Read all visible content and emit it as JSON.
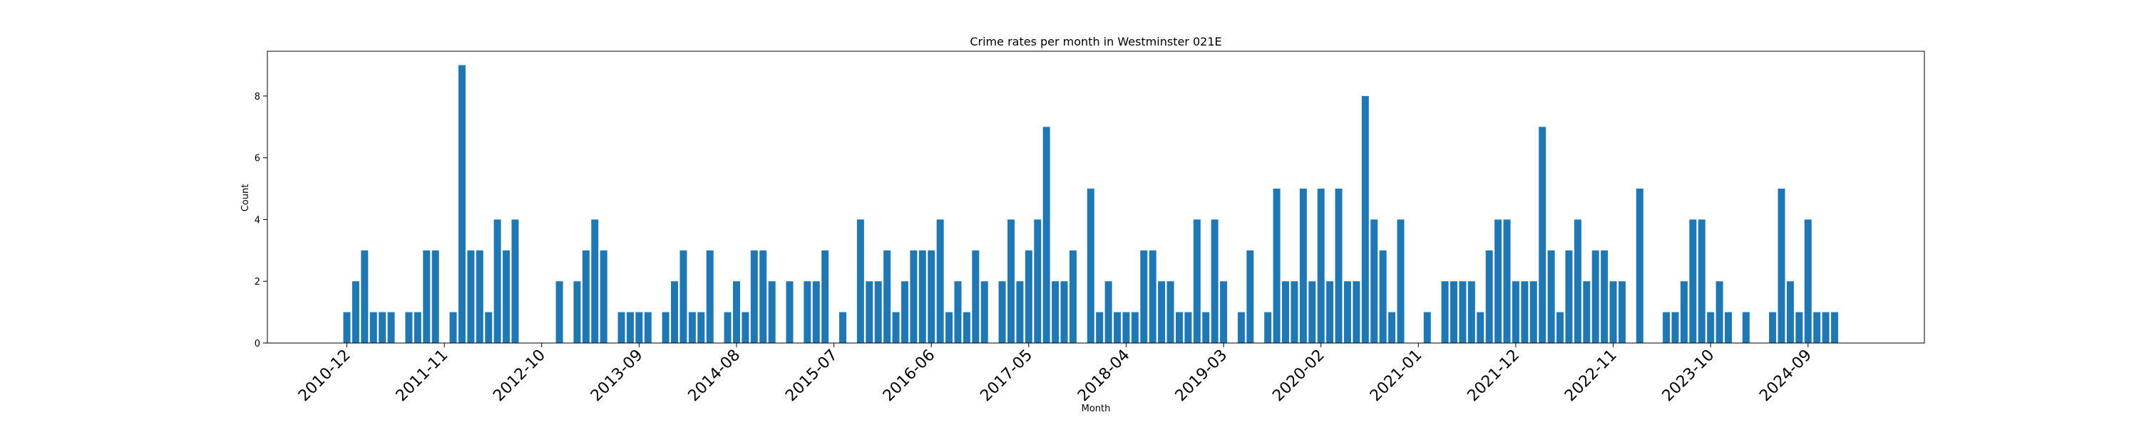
{
  "chart_data": {
    "type": "bar",
    "title": "Crime rates per month in Westminster 021E",
    "xlabel": "Month",
    "ylabel": "Count",
    "ylim": [
      0,
      9.45
    ],
    "yticks": [
      0,
      2,
      4,
      6,
      8
    ],
    "grid": false,
    "bar_color": "#1f77b4",
    "x_start": "2010-12",
    "x_tick_labels": [
      "2010-12",
      "2011-11",
      "2012-10",
      "2013-09",
      "2014-08",
      "2015-07",
      "2016-06",
      "2017-05",
      "2018-04",
      "2019-03",
      "2020-02",
      "2021-01",
      "2021-12",
      "2022-11",
      "2023-10",
      "2024-09"
    ],
    "values": [
      1,
      2,
      3,
      1,
      1,
      1,
      0,
      1,
      1,
      3,
      3,
      0,
      1,
      9,
      3,
      3,
      1,
      4,
      3,
      4,
      0,
      0,
      0,
      0,
      2,
      0,
      2,
      3,
      4,
      3,
      0,
      1,
      1,
      1,
      1,
      0,
      1,
      2,
      3,
      1,
      1,
      3,
      0,
      1,
      2,
      1,
      3,
      3,
      2,
      0,
      2,
      0,
      2,
      2,
      3,
      0,
      1,
      0,
      4,
      2,
      2,
      3,
      1,
      2,
      3,
      3,
      3,
      4,
      1,
      2,
      1,
      3,
      2,
      0,
      2,
      4,
      2,
      3,
      4,
      7,
      2,
      2,
      3,
      0,
      5,
      1,
      2,
      1,
      1,
      1,
      3,
      3,
      2,
      2,
      1,
      1,
      4,
      1,
      4,
      2,
      0,
      1,
      3,
      0,
      1,
      5,
      2,
      2,
      5,
      2,
      5,
      2,
      5,
      2,
      2,
      8,
      4,
      3,
      1,
      4,
      0,
      0,
      1,
      0,
      2,
      2,
      2,
      2,
      1,
      3,
      4,
      4,
      2,
      2,
      2,
      7,
      3,
      1,
      3,
      4,
      2,
      3,
      3,
      2,
      2,
      0,
      5,
      0,
      0,
      1,
      1,
      2,
      4,
      4,
      1,
      2,
      1,
      0,
      1,
      0,
      0,
      1,
      5,
      2,
      1,
      4,
      1,
      1,
      1
    ]
  }
}
